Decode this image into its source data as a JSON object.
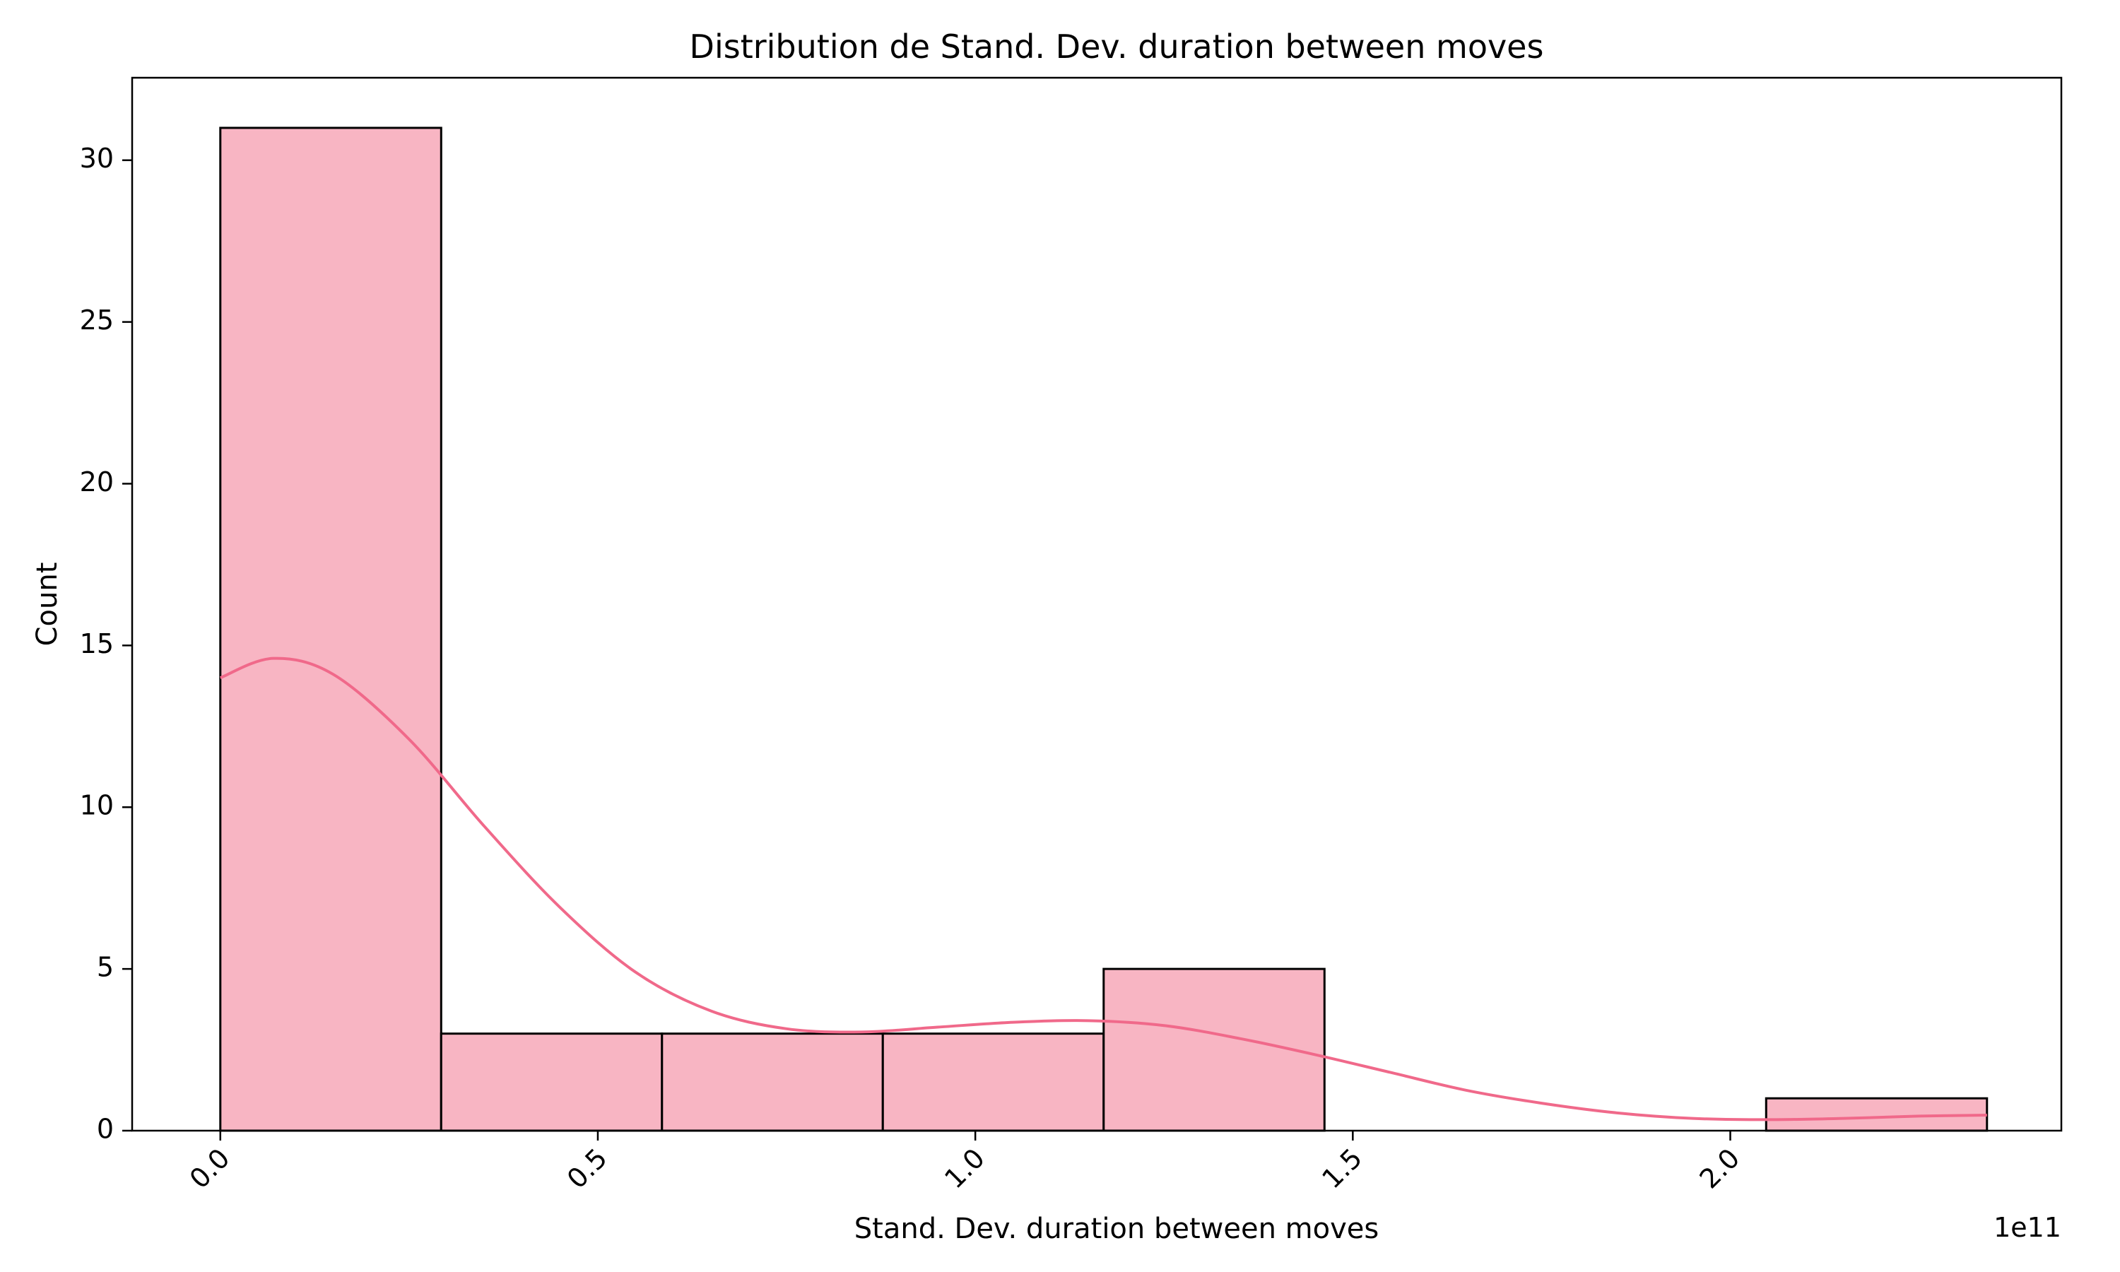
{
  "chart_data": {
    "type": "bar",
    "subtype": "histogram-with-kde",
    "title": "Distribution de Stand. Dev. duration between moves",
    "xlabel": "Stand. Dev. duration between moves",
    "ylabel": "Count",
    "x_offset_label": "1e11",
    "x_scale": 100000000000,
    "xlim": [
      -0.1168,
      2.4385
    ],
    "ylim": [
      0,
      32.55
    ],
    "bin_edges": [
      0.0,
      0.2925,
      0.585,
      0.8775,
      1.17,
      1.4625,
      1.755,
      2.0475,
      2.34
    ],
    "counts": [
      31,
      3,
      3,
      3,
      5,
      0,
      0,
      1
    ],
    "x_ticks": [
      0.0,
      0.5,
      1.0,
      1.5,
      2.0
    ],
    "x_tick_labels": [
      "0.0",
      "0.5",
      "1.0",
      "1.5",
      "2.0"
    ],
    "y_ticks": [
      0,
      5,
      10,
      15,
      20,
      25,
      30
    ],
    "y_tick_labels": [
      "0",
      "5",
      "10",
      "15",
      "20",
      "25",
      "30"
    ],
    "kde": {
      "x": [
        0.0,
        0.07,
        0.15,
        0.25,
        0.35,
        0.45,
        0.55,
        0.65,
        0.75,
        0.85,
        0.95,
        1.05,
        1.15,
        1.25,
        1.35,
        1.45,
        1.55,
        1.65,
        1.75,
        1.85,
        1.95,
        2.05,
        2.15,
        2.25,
        2.34
      ],
      "y": [
        14.0,
        14.6,
        14.1,
        12.1,
        9.4,
        6.9,
        4.9,
        3.7,
        3.15,
        3.05,
        3.2,
        3.35,
        3.4,
        3.25,
        2.85,
        2.35,
        1.8,
        1.25,
        0.85,
        0.55,
        0.38,
        0.34,
        0.38,
        0.45,
        0.48
      ]
    },
    "grid": false,
    "legend": "none",
    "colors": {
      "bar_fill": "#f8b5c3",
      "bar_edge": "#000000",
      "kde_line": "#f0698a"
    }
  }
}
